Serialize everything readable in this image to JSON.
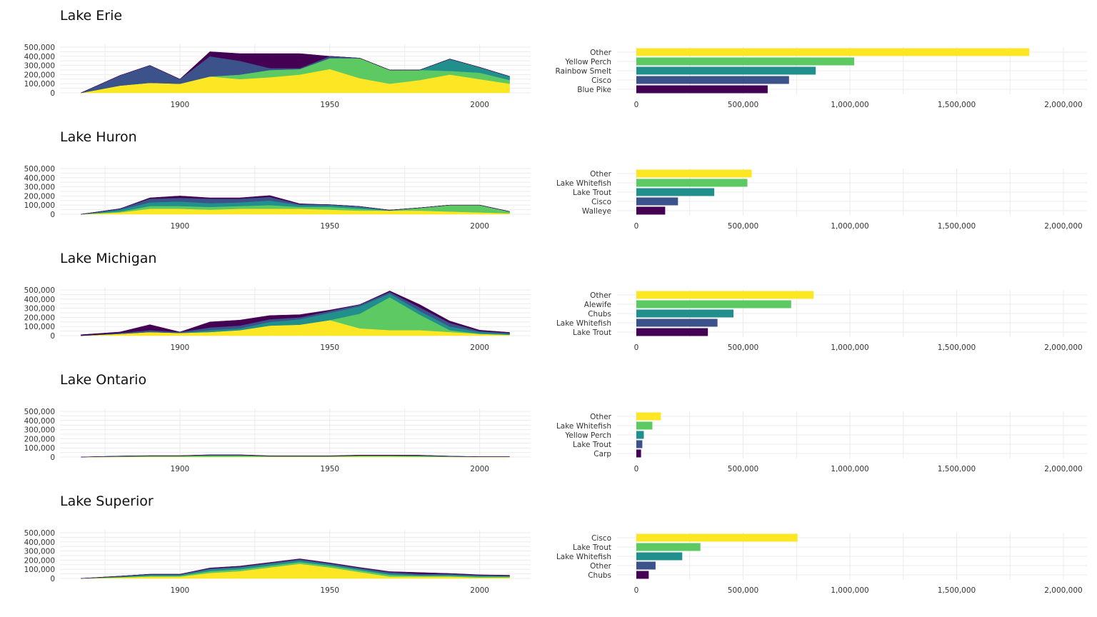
{
  "colors": {
    "viridis5": [
      "#440154",
      "#3b528b",
      "#21908c",
      "#5dc963",
      "#fde725"
    ],
    "grid": "#ebebeb"
  },
  "axes": {
    "area_y_ticks": [
      "500,000",
      "400,000",
      "300,000",
      "200,000",
      "100,000",
      "0"
    ],
    "area_x_ticks": [
      "1900",
      "1950",
      "2000"
    ],
    "bar_x_ticks": [
      "0",
      "500,000",
      "1,000,000",
      "1,500,000",
      "2,000,000"
    ]
  },
  "chart_data": [
    {
      "lake": "Lake Erie",
      "area": {
        "type": "area",
        "x": [
          1867,
          1880,
          1890,
          1900,
          1910,
          1920,
          1930,
          1940,
          1950,
          1960,
          1970,
          1980,
          1990,
          2000,
          2010
        ],
        "layers_bottom_to_top": [
          [
            0,
            80000,
            110000,
            100000,
            180000,
            150000,
            170000,
            200000,
            260000,
            160000,
            100000,
            140000,
            200000,
            150000,
            100000
          ],
          [
            0,
            0,
            0,
            0,
            0,
            50000,
            80000,
            60000,
            120000,
            220000,
            150000,
            110000,
            40000,
            70000,
            40000
          ],
          [
            0,
            0,
            0,
            0,
            0,
            0,
            0,
            0,
            0,
            0,
            0,
            0,
            130000,
            60000,
            40000
          ],
          [
            0,
            110000,
            190000,
            50000,
            220000,
            150000,
            20000,
            10000,
            20000,
            0,
            0,
            0,
            0,
            0,
            0
          ],
          [
            0,
            0,
            0,
            0,
            50000,
            80000,
            160000,
            160000,
            0,
            0,
            0,
            0,
            0,
            0,
            0
          ]
        ],
        "ylim": [
          0,
          500000
        ],
        "xlim": [
          1860,
          2017
        ]
      },
      "bar": {
        "type": "bar",
        "categories": [
          "Other",
          "Yellow Perch",
          "Rainbow Smelt",
          "Cisco",
          "Blue Pike"
        ],
        "values": [
          1840000,
          1020000,
          840000,
          715000,
          615000
        ],
        "xlim": [
          0,
          2100000
        ]
      }
    },
    {
      "lake": "Lake Huron",
      "area": {
        "type": "area",
        "x": [
          1867,
          1880,
          1890,
          1900,
          1910,
          1920,
          1930,
          1940,
          1950,
          1960,
          1970,
          1980,
          1990,
          2000,
          2010
        ],
        "layers_bottom_to_top": [
          [
            0,
            20000,
            60000,
            60000,
            50000,
            60000,
            60000,
            60000,
            50000,
            40000,
            40000,
            40000,
            30000,
            20000,
            10000
          ],
          [
            0,
            10000,
            30000,
            30000,
            30000,
            30000,
            40000,
            20000,
            30000,
            20000,
            0,
            30000,
            70000,
            80000,
            20000
          ],
          [
            0,
            20000,
            40000,
            50000,
            40000,
            40000,
            50000,
            20000,
            20000,
            20000,
            5000,
            0,
            0,
            0,
            0
          ],
          [
            0,
            10000,
            40000,
            40000,
            50000,
            40000,
            40000,
            10000,
            5000,
            5000,
            0,
            0,
            0,
            0,
            0
          ],
          [
            0,
            0,
            10000,
            20000,
            10000,
            10000,
            15000,
            5000,
            0,
            0,
            0,
            0,
            0,
            0,
            0
          ]
        ],
        "ylim": [
          0,
          500000
        ],
        "xlim": [
          1860,
          2017
        ]
      },
      "bar": {
        "type": "bar",
        "categories": [
          "Other",
          "Lake Whitefish",
          "Lake Trout",
          "Cisco",
          "Walleye"
        ],
        "values": [
          540000,
          520000,
          365000,
          195000,
          135000
        ],
        "xlim": [
          0,
          2100000
        ]
      }
    },
    {
      "lake": "Lake Michigan",
      "area": {
        "type": "area",
        "x": [
          1867,
          1880,
          1890,
          1900,
          1910,
          1920,
          1930,
          1940,
          1950,
          1960,
          1970,
          1980,
          1990,
          2000,
          2010
        ],
        "layers_bottom_to_top": [
          [
            0,
            20000,
            40000,
            30000,
            40000,
            60000,
            110000,
            120000,
            170000,
            80000,
            60000,
            60000,
            40000,
            20000,
            10000
          ],
          [
            0,
            0,
            0,
            0,
            0,
            0,
            0,
            0,
            0,
            160000,
            360000,
            170000,
            20000,
            0,
            0
          ],
          [
            0,
            0,
            0,
            0,
            20000,
            20000,
            40000,
            60000,
            80000,
            80000,
            40000,
            40000,
            40000,
            20000,
            10000
          ],
          [
            0,
            10000,
            20000,
            10000,
            30000,
            30000,
            30000,
            20000,
            20000,
            20000,
            20000,
            40000,
            40000,
            10000,
            10000
          ],
          [
            10000,
            10000,
            60000,
            0,
            60000,
            60000,
            40000,
            30000,
            10000,
            0,
            10000,
            30000,
            20000,
            10000,
            5000
          ]
        ],
        "ylim": [
          0,
          500000
        ],
        "xlim": [
          1860,
          2017
        ]
      },
      "bar": {
        "type": "bar",
        "categories": [
          "Other",
          "Alewife",
          "Chubs",
          "Lake Whitefish",
          "Lake Trout"
        ],
        "values": [
          830000,
          725000,
          455000,
          380000,
          335000
        ],
        "xlim": [
          0,
          2100000
        ]
      }
    },
    {
      "lake": "Lake Ontario",
      "area": {
        "type": "area",
        "x": [
          1867,
          1880,
          1890,
          1900,
          1910,
          1920,
          1930,
          1940,
          1950,
          1960,
          1970,
          1980,
          1990,
          2000,
          2010
        ],
        "layers_bottom_to_top": [
          [
            0,
            3000,
            5000,
            5000,
            5000,
            5000,
            5000,
            5000,
            5000,
            8000,
            8000,
            5000,
            3000,
            2000,
            2000
          ],
          [
            0,
            3000,
            5000,
            5000,
            10000,
            10000,
            3000,
            3000,
            3000,
            5000,
            5000,
            5000,
            2000,
            0,
            0
          ],
          [
            0,
            2000,
            2000,
            2000,
            5000,
            5000,
            2000,
            2000,
            2000,
            3000,
            3000,
            5000,
            2000,
            0,
            0
          ],
          [
            0,
            2000,
            2000,
            2000,
            3000,
            3000,
            2000,
            2000,
            2000,
            3000,
            3000,
            3000,
            2000,
            1000,
            1000
          ],
          [
            0,
            1000,
            2000,
            2000,
            2000,
            2000,
            2000,
            2000,
            2000,
            3000,
            3000,
            2000,
            1000,
            0,
            0
          ]
        ],
        "ylim": [
          0,
          500000
        ],
        "xlim": [
          1860,
          2017
        ]
      },
      "bar": {
        "type": "bar",
        "categories": [
          "Other",
          "Lake Whitefish",
          "Yellow Perch",
          "Lake Trout",
          "Carp"
        ],
        "values": [
          115000,
          75000,
          35000,
          28000,
          22000
        ],
        "xlim": [
          0,
          2100000
        ]
      }
    },
    {
      "lake": "Lake Superior",
      "area": {
        "type": "area",
        "x": [
          1867,
          1880,
          1890,
          1900,
          1910,
          1920,
          1930,
          1940,
          1950,
          1960,
          1970,
          1980,
          1990,
          2000,
          2010
        ],
        "layers_bottom_to_top": [
          [
            0,
            10000,
            20000,
            20000,
            60000,
            80000,
            120000,
            160000,
            120000,
            70000,
            20000,
            20000,
            20000,
            10000,
            10000
          ],
          [
            0,
            5000,
            10000,
            10000,
            20000,
            20000,
            20000,
            20000,
            20000,
            20000,
            20000,
            10000,
            10000,
            10000,
            10000
          ],
          [
            0,
            5000,
            10000,
            10000,
            20000,
            20000,
            20000,
            20000,
            15000,
            15000,
            15000,
            10000,
            10000,
            10000,
            5000
          ],
          [
            0,
            5000,
            5000,
            5000,
            10000,
            10000,
            10000,
            10000,
            10000,
            10000,
            15000,
            10000,
            10000,
            5000,
            5000
          ],
          [
            0,
            0,
            2000,
            2000,
            5000,
            5000,
            5000,
            5000,
            5000,
            5000,
            5000,
            15000,
            5000,
            5000,
            5000
          ]
        ],
        "ylim": [
          0,
          500000
        ],
        "xlim": [
          1860,
          2017
        ]
      },
      "bar": {
        "type": "bar",
        "categories": [
          "Cisco",
          "Lake Trout",
          "Lake Whitefish",
          "Other",
          "Chubs"
        ],
        "values": [
          755000,
          300000,
          215000,
          90000,
          58000
        ],
        "xlim": [
          0,
          2100000
        ]
      }
    }
  ]
}
